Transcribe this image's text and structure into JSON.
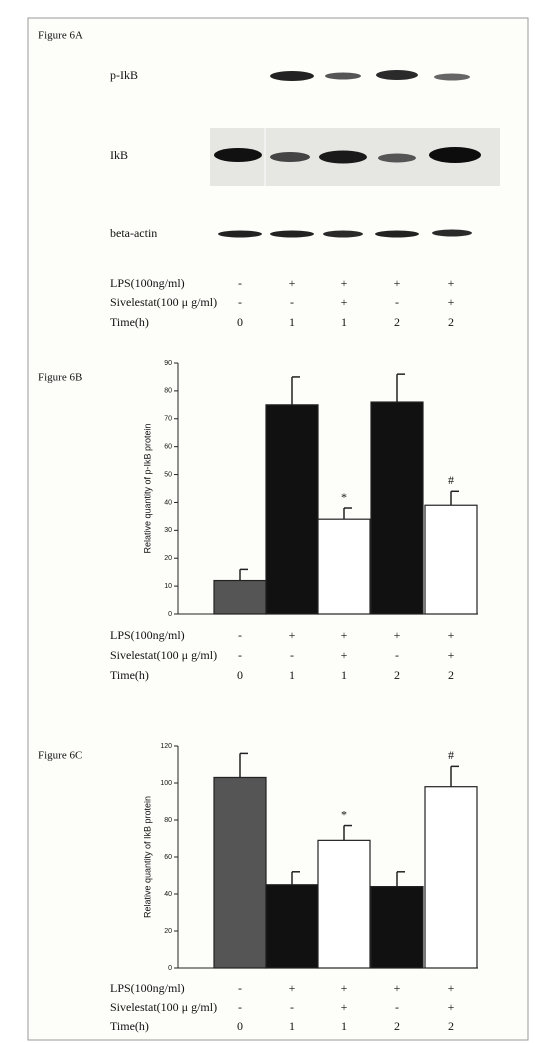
{
  "blot": {
    "title": "Figure 6A",
    "bands": [
      "p-IkB",
      "IkB",
      "beta-actin"
    ],
    "rows": [
      {
        "name": "LPS(100ng/ml)",
        "values": [
          "-",
          "+",
          "+",
          "+",
          "+"
        ]
      },
      {
        "name": "Sivelestat(100 μ g/ml)",
        "values": [
          "-",
          "-",
          "+",
          "-",
          "+"
        ]
      },
      {
        "name": "Time(h)",
        "values": [
          "0",
          "1",
          "1",
          "2",
          "2"
        ]
      }
    ]
  },
  "chart_data": [
    {
      "type": "bar",
      "title": "Figure 6B",
      "ylabel": "Relative quantity of p-IkB protein",
      "values": [
        12,
        75,
        34,
        76,
        39
      ],
      "errors": [
        4,
        10,
        4,
        10,
        5
      ],
      "colors": [
        "#555555",
        "#111111",
        "#ffffff",
        "#111111",
        "#ffffff"
      ],
      "annotations": [
        null,
        null,
        "*",
        null,
        "#"
      ],
      "ylim": [
        0,
        90
      ],
      "yticks": [
        0,
        10,
        20,
        30,
        40,
        50,
        60,
        70,
        80,
        90
      ],
      "rows": [
        {
          "name": "LPS(100ng/ml)",
          "values": [
            "-",
            "+",
            "+",
            "+",
            "+"
          ]
        },
        {
          "name": "Sivelestat(100 μ g/ml)",
          "values": [
            "-",
            "-",
            "+",
            "-",
            "+"
          ]
        },
        {
          "name": "Time(h)",
          "values": [
            "0",
            "1",
            "1",
            "2",
            "2"
          ]
        }
      ]
    },
    {
      "type": "bar",
      "title": "Figure 6C",
      "ylabel": "Relative quantity of IkB protein",
      "values": [
        103,
        45,
        69,
        44,
        98
      ],
      "errors": [
        13,
        7,
        8,
        8,
        11
      ],
      "colors": [
        "#555555",
        "#111111",
        "#ffffff",
        "#111111",
        "#ffffff"
      ],
      "annotations": [
        null,
        null,
        "*",
        null,
        "#"
      ],
      "ylim": [
        0,
        120
      ],
      "yticks": [
        0,
        20,
        40,
        60,
        80,
        100,
        120
      ],
      "rows": [
        {
          "name": "LPS(100ng/ml)",
          "values": [
            "-",
            "+",
            "+",
            "+",
            "+"
          ]
        },
        {
          "name": "Sivelestat(100 μ g/ml)",
          "values": [
            "-",
            "-",
            "+",
            "-",
            "+"
          ]
        },
        {
          "name": "Time(h)",
          "values": [
            "0",
            "1",
            "1",
            "2",
            "2"
          ]
        }
      ]
    }
  ]
}
